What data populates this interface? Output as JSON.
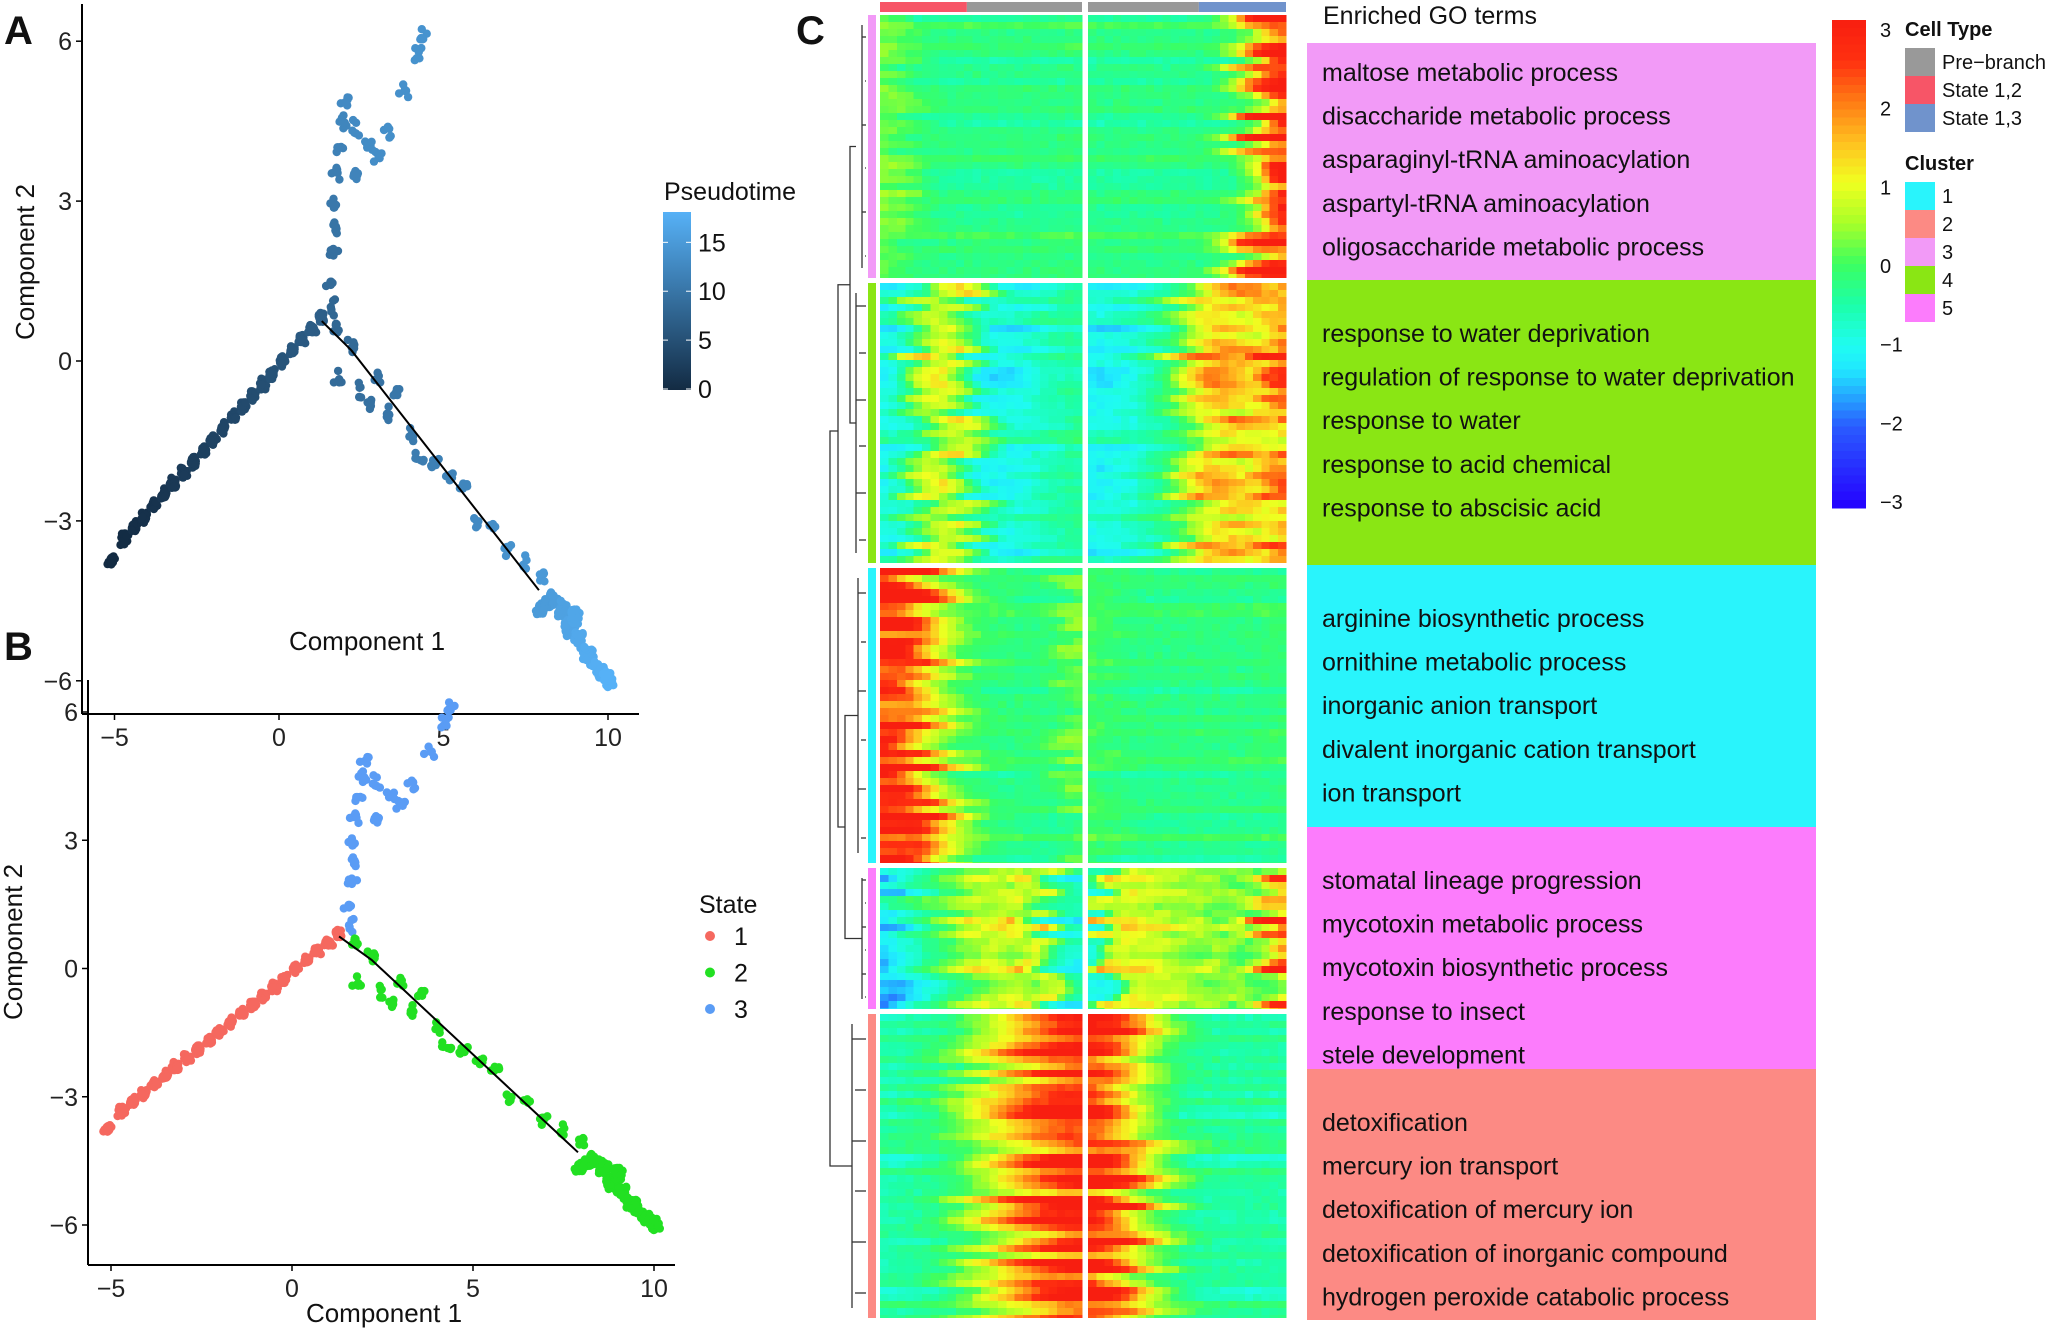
{
  "panels": {
    "a": "A",
    "b": "B",
    "c": "C"
  },
  "chart_data": [
    {
      "type": "scatter",
      "panel": "A",
      "xlabel": "Component 1",
      "ylabel": "Component 2",
      "xlim": [
        -6,
        10.7
      ],
      "ylim": [
        -7.2,
        6.8
      ],
      "xticks": [
        -5,
        0,
        5,
        10
      ],
      "yticks": [
        -6,
        -3,
        0,
        3,
        6
      ],
      "grid": false,
      "color_by": "Pseudotime",
      "legend": {
        "title": "Pseudotime",
        "ticks": [
          0,
          5,
          10,
          15
        ],
        "range": [
          0,
          18
        ],
        "low_color": "#132b43",
        "high_color": "#56b1f7",
        "placement": "right"
      },
      "trajectory": [
        [
          1.3,
          0.75
        ],
        [
          2.2,
          0.2
        ],
        [
          7.9,
          -4.3
        ]
      ],
      "points_columns": [
        "x",
        "y",
        "pseudotime",
        "state"
      ],
      "points": [
        [
          -5.1,
          -3.75,
          0,
          1
        ],
        [
          -4.7,
          -3.33,
          0.1,
          1
        ],
        [
          -4.4,
          -3.12,
          0.5,
          1
        ],
        [
          -4.1,
          -2.92,
          0.8,
          1
        ],
        [
          -3.8,
          -2.71,
          1.1,
          1
        ],
        [
          -3.5,
          -2.5,
          1.5,
          1
        ],
        [
          -3.2,
          -2.3,
          1.8,
          1
        ],
        [
          -2.9,
          -2.09,
          2.2,
          1
        ],
        [
          -2.6,
          -1.89,
          2.5,
          1
        ],
        [
          -2.3,
          -1.68,
          2.8,
          1
        ],
        [
          -2.0,
          -1.48,
          3.2,
          1
        ],
        [
          -1.7,
          -1.27,
          3.5,
          1
        ],
        [
          -1.4,
          -1.06,
          3.8,
          1
        ],
        [
          -1.1,
          -0.86,
          4.2,
          1
        ],
        [
          -0.8,
          -0.65,
          4.5,
          1
        ],
        [
          -0.5,
          -0.44,
          4.8,
          1
        ],
        [
          -0.2,
          -0.24,
          5.2,
          1
        ],
        [
          0.1,
          -0.03,
          5.5,
          1
        ],
        [
          0.4,
          0.19,
          5.9,
          1
        ],
        [
          0.7,
          0.4,
          6.2,
          1
        ],
        [
          1.0,
          0.6,
          6.6,
          1
        ],
        [
          1.3,
          0.81,
          7,
          1
        ],
        [
          1.6,
          1.0,
          8,
          3
        ],
        [
          1.6,
          1.5,
          8.6,
          3
        ],
        [
          1.65,
          2.0,
          9.2,
          3
        ],
        [
          1.7,
          2.5,
          9.8,
          3
        ],
        [
          1.7,
          3.0,
          10.4,
          3
        ],
        [
          1.75,
          3.5,
          11,
          3
        ],
        [
          1.85,
          4.0,
          11.6,
          3
        ],
        [
          1.95,
          4.5,
          12.2,
          3
        ],
        [
          2.05,
          4.9,
          12.8,
          3
        ],
        [
          2.3,
          4.4,
          12.8,
          3
        ],
        [
          2.7,
          4.0,
          13,
          3
        ],
        [
          3.0,
          3.9,
          13.2,
          3
        ],
        [
          3.3,
          4.3,
          13.4,
          3
        ],
        [
          3.8,
          5.1,
          13.6,
          3
        ],
        [
          4.2,
          5.7,
          13.8,
          3
        ],
        [
          4.3,
          6.1,
          14,
          3
        ],
        [
          2.3,
          3.5,
          12,
          3
        ],
        [
          1.8,
          0.6,
          8,
          2
        ],
        [
          2.2,
          0.3,
          8.4,
          2
        ],
        [
          1.8,
          -0.3,
          8.6,
          2
        ],
        [
          2.4,
          -0.6,
          9,
          2
        ],
        [
          2.8,
          -0.8,
          9.4,
          2
        ],
        [
          3.0,
          -0.3,
          9.6,
          2
        ],
        [
          3.3,
          -1.0,
          10,
          2
        ],
        [
          3.6,
          -0.6,
          10.2,
          2
        ],
        [
          4.0,
          -1.4,
          10.6,
          2
        ],
        [
          4.3,
          -1.8,
          11,
          2
        ],
        [
          4.7,
          -1.9,
          11.4,
          2
        ],
        [
          5.2,
          -2.2,
          11.8,
          2
        ],
        [
          5.6,
          -2.4,
          12.2,
          2
        ],
        [
          6.0,
          -3.0,
          12.8,
          2
        ],
        [
          6.5,
          -3.1,
          13.3,
          2
        ],
        [
          7.0,
          -3.5,
          13.8,
          2
        ],
        [
          7.5,
          -3.8,
          14.3,
          2
        ],
        [
          8.0,
          -4.0,
          14.8,
          2
        ],
        [
          8.3,
          -4.5,
          15.3,
          2
        ],
        [
          8.6,
          -4.7,
          15.8,
          2
        ],
        [
          8.8,
          -5.0,
          16.3,
          2
        ],
        [
          9.1,
          -5.2,
          16.8,
          2
        ],
        [
          9.4,
          -5.5,
          17.2,
          2
        ],
        [
          9.7,
          -5.8,
          17.6,
          2
        ],
        [
          10.0,
          -6.0,
          18,
          2
        ],
        [
          8.0,
          -4.6,
          15,
          2
        ],
        [
          9.0,
          -4.8,
          16.5,
          2
        ]
      ]
    },
    {
      "type": "scatter",
      "panel": "B",
      "xlabel": "Component 1",
      "ylabel": "Component 2",
      "xlim": [
        -5.6,
        10.5
      ],
      "ylim": [
        -6.7,
        6.9
      ],
      "xticks": [
        -5,
        0,
        5,
        10
      ],
      "yticks": [
        -6,
        -3,
        0,
        3,
        6
      ],
      "grid": false,
      "color_by": "State",
      "legend": {
        "title": "State",
        "placement": "right",
        "entries": [
          {
            "label": "1",
            "color": "#f5685f"
          },
          {
            "label": "2",
            "color": "#22e022"
          },
          {
            "label": "3",
            "color": "#5a9cf5"
          }
        ]
      },
      "trajectory": [
        [
          1.3,
          0.75
        ],
        [
          2.2,
          0.2
        ],
        [
          7.9,
          -4.3
        ]
      ],
      "points_from": "A"
    },
    {
      "type": "heatmap",
      "panel": "C",
      "color_scale": {
        "ticks": [
          3,
          2,
          1,
          0,
          -1,
          -2,
          -3
        ],
        "range": [
          -3,
          3
        ],
        "stops": [
          [
            -3,
            "#2400ff"
          ],
          [
            -2,
            "#2a5cff"
          ],
          [
            -1.3,
            "#20e8ff"
          ],
          [
            -1,
            "#1ffcf0"
          ],
          [
            -0.5,
            "#1cffa8"
          ],
          [
            0,
            "#3cff60"
          ],
          [
            0.5,
            "#a8ff28"
          ],
          [
            1,
            "#f0ff20"
          ],
          [
            1.5,
            "#ffc020"
          ],
          [
            2,
            "#ff7a14"
          ],
          [
            2.5,
            "#ff3010"
          ],
          [
            3,
            "#f81e10"
          ]
        ]
      },
      "cell_type_legend": {
        "title": "Cell Type",
        "entries": [
          {
            "label": "Pre−branch",
            "color": "#999999"
          },
          {
            "label": "State 1,2",
            "color": "#f75567"
          },
          {
            "label": "State 1,3",
            "color": "#7093cc"
          }
        ]
      },
      "cluster_legend": {
        "title": "Cluster",
        "entries": [
          {
            "label": "1",
            "color": "#29f4fc"
          },
          {
            "label": "2",
            "color": "#fc8a84"
          },
          {
            "label": "3",
            "color": "#f29af7"
          },
          {
            "label": "4",
            "color": "#8ae614"
          },
          {
            "label": "5",
            "color": "#fc7cfc"
          }
        ]
      },
      "column_annotation": {
        "left_half": [
          {
            "type": "State 1,2",
            "fraction": 0.43
          },
          {
            "type": "Pre−branch",
            "fraction": 0.57
          }
        ],
        "right_half": [
          {
            "type": "Pre−branch",
            "fraction": 0.56
          },
          {
            "type": "State 1,3",
            "fraction": 0.44
          }
        ]
      },
      "go_title": "Enriched GO terms",
      "row_clusters": [
        {
          "cluster": "3",
          "color": "#f29af7",
          "left_profile": [
            0.3,
            0,
            -0.3,
            -0.3,
            -0.3,
            -0.3,
            -0.3,
            -0.3,
            -0.3,
            -0.2
          ],
          "right_profile": [
            -0.3,
            -0.3,
            -0.3,
            -0.3,
            -0.3,
            -0.3,
            -0.2,
            0.4,
            2.2,
            3
          ],
          "go_terms": [
            "maltose metabolic process",
            "disaccharide metabolic process",
            "asparaginyl-tRNA aminoacylation",
            "aspartyl-tRNA aminoacylation",
            "oligosaccharide metabolic process"
          ]
        },
        {
          "cluster": "4",
          "color": "#8ae614",
          "left_profile": [
            -1,
            -0.6,
            0.6,
            1,
            0.2,
            -0.9,
            -1,
            -0.8,
            -0.5,
            -0.4
          ],
          "right_profile": [
            -1,
            -1,
            -0.8,
            -0.5,
            0,
            0.9,
            1.6,
            1.4,
            1,
            2
          ],
          "go_terms": [
            "response to water deprivation",
            "regulation of response to water deprivation",
            "response to water",
            "response to acid chemical",
            "response to abscisic acid"
          ]
        },
        {
          "cluster": "1",
          "color": "#29f4fc",
          "left_profile": [
            3,
            3,
            1.6,
            0.6,
            0,
            -0.2,
            -0.3,
            -0.3,
            -0.2,
            0.3
          ],
          "right_profile": [
            0,
            -0.2,
            -0.3,
            -0.3,
            -0.3,
            -0.3,
            -0.3,
            -0.3,
            -0.3,
            -0.2
          ],
          "go_terms": [
            "arginine biosynthetic process",
            "ornithine metabolic process",
            "inorganic anion transport",
            "divalent inorganic cation transport",
            "ion transport"
          ]
        },
        {
          "cluster": "5",
          "color": "#fc7cfc",
          "left_profile": [
            -1.6,
            -1,
            -0.4,
            0,
            0.5,
            0.9,
            0.5,
            1.2,
            -0.5,
            -1
          ],
          "right_profile": [
            -1,
            1.2,
            0.8,
            1,
            0.5,
            0.3,
            0.6,
            0,
            0.5,
            2.2
          ],
          "go_terms": [
            "stomatal lineage progression",
            "mycotoxin metabolic process",
            "mycotoxin biosynthetic process",
            "response to insect",
            "stele development"
          ]
        },
        {
          "cluster": "2",
          "color": "#fc8a84",
          "left_profile": [
            -0.6,
            -0.5,
            -0.4,
            -0.2,
            0.3,
            0.8,
            1.4,
            2,
            2.6,
            3
          ],
          "right_profile": [
            3,
            2.6,
            1.6,
            0.6,
            0,
            -0.4,
            -0.5,
            -0.5,
            -0.5,
            -0.5
          ],
          "go_terms": [
            "detoxification",
            "mercury ion transport",
            "detoxification of mercury ion",
            "detoxification of inorganic compound",
            "hydrogen peroxide catabolic process"
          ]
        }
      ]
    }
  ]
}
